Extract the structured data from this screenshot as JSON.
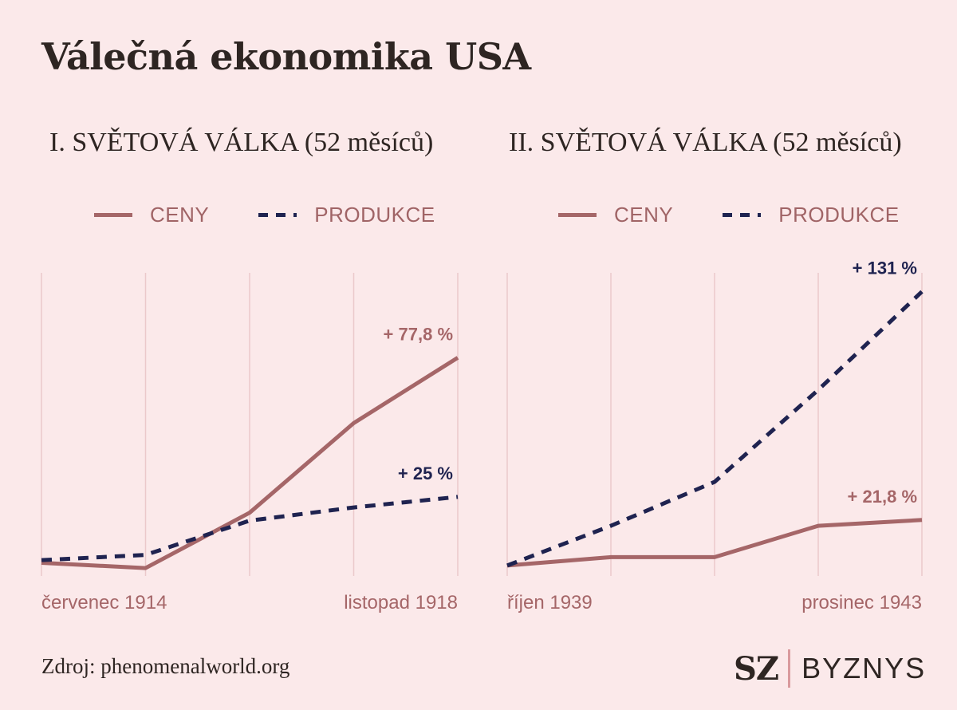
{
  "title": "Válečná ekonomika USA",
  "source": "Zdroj: phenomenalworld.org",
  "brand": {
    "mark": "SZ",
    "name": "BYZNYS"
  },
  "colors": {
    "background": "#fbe9ea",
    "ceny": "#a56668",
    "produkce": "#1f2350",
    "grid": "#ebc9cb"
  },
  "chart_data": [
    {
      "type": "line",
      "title": "I. SVĚTOVÁ VÁLKA (52 měsíců)",
      "x_labels": {
        "start": "červenec 1914",
        "end": "listopad 1918"
      },
      "x": [
        0,
        13,
        26,
        39,
        52
      ],
      "ylim": [
        -5,
        110
      ],
      "grid": "vertical",
      "legend": "top",
      "series": [
        {
          "name": "CENY",
          "style": "solid",
          "values": [
            0,
            -2,
            19,
            53,
            77.8
          ],
          "end_label": "+ 77,8 %"
        },
        {
          "name": "PRODUKCE",
          "style": "dashed",
          "values": [
            1,
            3,
            16,
            21,
            25
          ],
          "end_label": "+ 25 %"
        }
      ]
    },
    {
      "type": "line",
      "title": "II. SVĚTOVÁ VÁLKA (52 měsíců)",
      "x_labels": {
        "start": "říjen 1939",
        "end": "prosinec 1943"
      },
      "x": [
        0,
        13,
        26,
        39,
        52
      ],
      "ylim": [
        -5,
        140
      ],
      "grid": "vertical",
      "legend": "top",
      "series": [
        {
          "name": "CENY",
          "style": "solid",
          "values": [
            0,
            4,
            4,
            19,
            21.8
          ],
          "end_label": "+ 21,8 %"
        },
        {
          "name": "PRODUKCE",
          "style": "dashed",
          "values": [
            0,
            19,
            40,
            84,
            131
          ],
          "end_label": "+ 131 %"
        }
      ]
    }
  ]
}
